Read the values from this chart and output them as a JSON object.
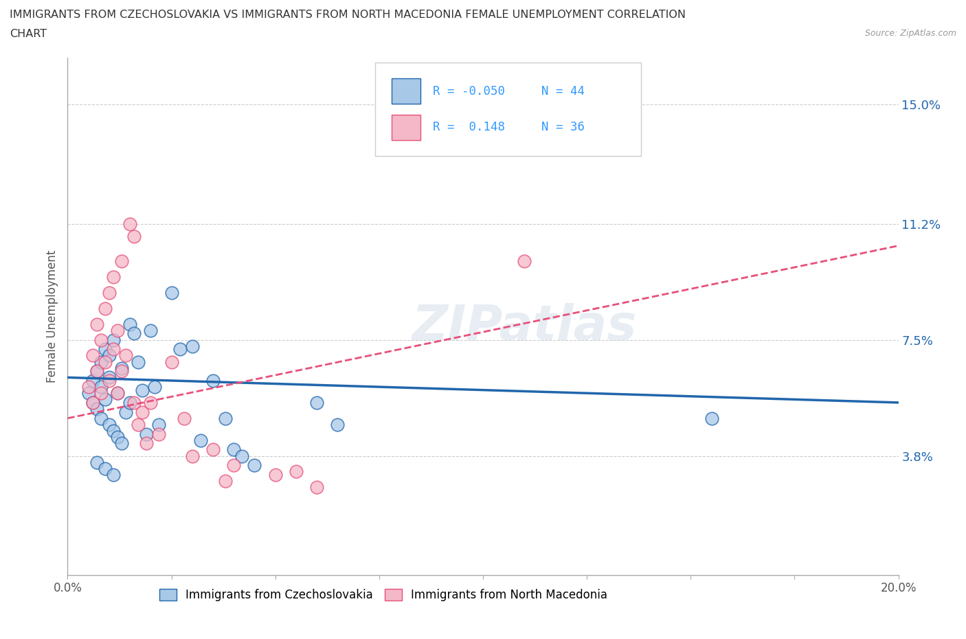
{
  "title_line1": "IMMIGRANTS FROM CZECHOSLOVAKIA VS IMMIGRANTS FROM NORTH MACEDONIA FEMALE UNEMPLOYMENT CORRELATION",
  "title_line2": "CHART",
  "source_text": "Source: ZipAtlas.com",
  "ylabel": "Female Unemployment",
  "legend_label1": "Immigrants from Czechoslovakia",
  "legend_label2": "Immigrants from North Macedonia",
  "r1": -0.05,
  "r2": 0.148,
  "n1": 44,
  "n2": 36,
  "xlim": [
    0.0,
    0.2
  ],
  "ylim": [
    0.0,
    0.165
  ],
  "yticks": [
    0.038,
    0.075,
    0.112,
    0.15
  ],
  "ytick_labels": [
    "3.8%",
    "7.5%",
    "11.2%",
    "15.0%"
  ],
  "xticks": [
    0.0,
    0.025,
    0.05,
    0.075,
    0.1,
    0.125,
    0.15,
    0.175,
    0.2
  ],
  "color1": "#a8c8e8",
  "color2": "#f4b8c8",
  "line_color1": "#2166ac",
  "line_color2": "#e8507a",
  "watermark_text": "ZIPatlas",
  "background_color": "#ffffff",
  "title_color": "#333333",
  "r_color": "#3399ff",
  "scatter1_x": [
    0.005,
    0.006,
    0.006,
    0.007,
    0.007,
    0.008,
    0.008,
    0.008,
    0.009,
    0.009,
    0.01,
    0.01,
    0.01,
    0.011,
    0.011,
    0.012,
    0.012,
    0.013,
    0.013,
    0.014,
    0.015,
    0.015,
    0.016,
    0.017,
    0.018,
    0.019,
    0.02,
    0.021,
    0.022,
    0.025,
    0.027,
    0.03,
    0.032,
    0.035,
    0.038,
    0.04,
    0.042,
    0.045,
    0.06,
    0.065,
    0.155,
    0.007,
    0.009,
    0.011
  ],
  "scatter1_y": [
    0.058,
    0.055,
    0.062,
    0.065,
    0.053,
    0.06,
    0.068,
    0.05,
    0.056,
    0.072,
    0.063,
    0.048,
    0.07,
    0.046,
    0.075,
    0.058,
    0.044,
    0.066,
    0.042,
    0.052,
    0.08,
    0.055,
    0.077,
    0.068,
    0.059,
    0.045,
    0.078,
    0.06,
    0.048,
    0.09,
    0.072,
    0.073,
    0.043,
    0.062,
    0.05,
    0.04,
    0.038,
    0.035,
    0.055,
    0.048,
    0.05,
    0.036,
    0.034,
    0.032
  ],
  "scatter2_x": [
    0.005,
    0.006,
    0.006,
    0.007,
    0.007,
    0.008,
    0.008,
    0.009,
    0.009,
    0.01,
    0.01,
    0.011,
    0.011,
    0.012,
    0.012,
    0.013,
    0.013,
    0.014,
    0.015,
    0.016,
    0.016,
    0.017,
    0.018,
    0.019,
    0.02,
    0.022,
    0.025,
    0.028,
    0.03,
    0.035,
    0.038,
    0.04,
    0.05,
    0.055,
    0.06,
    0.11
  ],
  "scatter2_y": [
    0.06,
    0.055,
    0.07,
    0.065,
    0.08,
    0.058,
    0.075,
    0.068,
    0.085,
    0.062,
    0.09,
    0.072,
    0.095,
    0.058,
    0.078,
    0.065,
    0.1,
    0.07,
    0.112,
    0.055,
    0.108,
    0.048,
    0.052,
    0.042,
    0.055,
    0.045,
    0.068,
    0.05,
    0.038,
    0.04,
    0.03,
    0.035,
    0.032,
    0.033,
    0.028,
    0.1
  ],
  "line1_x0": 0.0,
  "line1_y0": 0.063,
  "line1_x1": 0.2,
  "line1_y1": 0.055,
  "line2_x0": 0.0,
  "line2_y0": 0.05,
  "line2_x1": 0.2,
  "line2_y1": 0.105
}
